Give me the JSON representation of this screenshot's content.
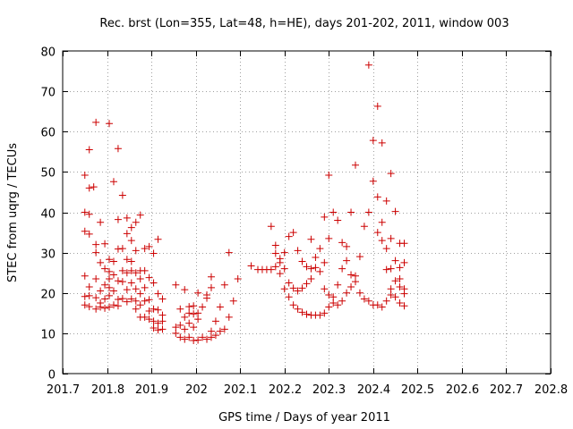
{
  "chart_data": {
    "type": "scatter",
    "title": "Rec. brst (Lon=355, Lat=48, h=HE), days 201-202, 2011, window 003",
    "xlabel": "GPS time / Days of year 2011",
    "ylabel": "STEC from uqrg / TECUs",
    "xlim": [
      201.7,
      202.8
    ],
    "ylim": [
      0,
      80
    ],
    "grid": true,
    "marker": "+",
    "marker_color": "#cc0000",
    "xticks": [
      201.7,
      201.8,
      201.9,
      202.0,
      202.1,
      202.2,
      202.3,
      202.4,
      202.5,
      202.6,
      202.7,
      202.8
    ],
    "xtick_labels": [
      "201.7",
      "201.8",
      "201.9",
      "202",
      "202.1",
      "202.2",
      "202.3",
      "202.4",
      "202.5",
      "202.6",
      "202.7",
      "202.8"
    ],
    "yticks": [
      0,
      10,
      20,
      30,
      40,
      50,
      60,
      70,
      80
    ],
    "ytick_labels": [
      "0",
      "10",
      "20",
      "30",
      "40",
      "50",
      "60",
      "70",
      "80"
    ],
    "series": [
      {
        "name": "STEC",
        "points": [
          [
            201.75,
            49.2
          ],
          [
            201.75,
            40.0
          ],
          [
            201.75,
            35.3
          ],
          [
            201.75,
            24.2
          ],
          [
            201.75,
            19.1
          ],
          [
            201.75,
            17.0
          ],
          [
            201.76,
            55.5
          ],
          [
            201.76,
            46.0
          ],
          [
            201.76,
            39.5
          ],
          [
            201.76,
            34.6
          ],
          [
            201.76,
            21.5
          ],
          [
            201.76,
            19.3
          ],
          [
            201.76,
            16.6
          ],
          [
            201.77,
            46.3
          ],
          [
            201.775,
            62.3
          ],
          [
            201.775,
            32.0
          ],
          [
            201.775,
            30.0
          ],
          [
            201.775,
            23.5
          ],
          [
            201.775,
            18.8
          ],
          [
            201.775,
            16.0
          ],
          [
            201.785,
            37.5
          ],
          [
            201.785,
            27.5
          ],
          [
            201.785,
            20.5
          ],
          [
            201.785,
            17.5
          ],
          [
            201.785,
            16.5
          ],
          [
            201.795,
            32.2
          ],
          [
            201.795,
            26.0
          ],
          [
            201.795,
            22.0
          ],
          [
            201.795,
            18.5
          ],
          [
            201.795,
            16.2
          ],
          [
            201.805,
            62.0
          ],
          [
            201.805,
            28.3
          ],
          [
            201.805,
            25.3
          ],
          [
            201.805,
            23.5
          ],
          [
            201.805,
            21.3
          ],
          [
            201.805,
            19.3
          ],
          [
            201.805,
            16.5
          ],
          [
            201.815,
            47.6
          ],
          [
            201.815,
            27.8
          ],
          [
            201.815,
            24.5
          ],
          [
            201.815,
            20.5
          ],
          [
            201.815,
            17.0
          ],
          [
            201.825,
            55.8
          ],
          [
            201.825,
            38.2
          ],
          [
            201.825,
            30.9
          ],
          [
            201.825,
            23.0
          ],
          [
            201.825,
            18.4
          ],
          [
            201.825,
            16.8
          ],
          [
            201.835,
            44.2
          ],
          [
            201.835,
            31.0
          ],
          [
            201.835,
            25.5
          ],
          [
            201.835,
            22.8
          ],
          [
            201.835,
            18.6
          ],
          [
            201.845,
            38.6
          ],
          [
            201.845,
            34.7
          ],
          [
            201.845,
            28.3
          ],
          [
            201.845,
            25.0
          ],
          [
            201.845,
            20.8
          ],
          [
            201.845,
            17.8
          ],
          [
            201.855,
            36.2
          ],
          [
            201.855,
            33.0
          ],
          [
            201.855,
            27.8
          ],
          [
            201.855,
            25.5
          ],
          [
            201.855,
            22.5
          ],
          [
            201.855,
            18.5
          ],
          [
            201.865,
            37.5
          ],
          [
            201.865,
            30.5
          ],
          [
            201.865,
            25.0
          ],
          [
            201.865,
            21.0
          ],
          [
            201.865,
            18.0
          ],
          [
            201.865,
            16.0
          ],
          [
            201.875,
            39.3
          ],
          [
            201.875,
            25.5
          ],
          [
            201.875,
            23.5
          ],
          [
            201.875,
            19.8
          ],
          [
            201.875,
            17.0
          ],
          [
            201.875,
            14.0
          ],
          [
            201.885,
            31.0
          ],
          [
            201.885,
            25.5
          ],
          [
            201.885,
            21.3
          ],
          [
            201.885,
            18.0
          ],
          [
            201.885,
            14.0
          ],
          [
            201.895,
            31.5
          ],
          [
            201.895,
            23.8
          ],
          [
            201.895,
            18.3
          ],
          [
            201.895,
            15.5
          ],
          [
            201.895,
            13.5
          ],
          [
            201.905,
            29.8
          ],
          [
            201.905,
            22.5
          ],
          [
            201.905,
            16.0
          ],
          [
            201.905,
            13.0
          ],
          [
            201.905,
            11.3
          ],
          [
            201.915,
            33.3
          ],
          [
            201.915,
            19.8
          ],
          [
            201.915,
            15.8
          ],
          [
            201.915,
            12.5
          ],
          [
            201.915,
            10.8
          ],
          [
            201.925,
            18.5
          ],
          [
            201.925,
            14.5
          ],
          [
            201.925,
            13.0
          ],
          [
            201.925,
            11.0
          ],
          [
            201.955,
            22.0
          ],
          [
            201.955,
            11.5
          ],
          [
            201.955,
            10.0
          ],
          [
            201.965,
            16.0
          ],
          [
            201.965,
            12.0
          ],
          [
            201.965,
            9.0
          ],
          [
            201.975,
            20.8
          ],
          [
            201.975,
            14.0
          ],
          [
            201.975,
            11.0
          ],
          [
            201.975,
            8.5
          ],
          [
            201.985,
            16.6
          ],
          [
            201.985,
            15.0
          ],
          [
            201.985,
            12.5
          ],
          [
            201.985,
            9.0
          ],
          [
            201.995,
            16.8
          ],
          [
            201.995,
            14.8
          ],
          [
            201.995,
            11.5
          ],
          [
            201.995,
            8.2
          ],
          [
            202.005,
            20.0
          ],
          [
            202.005,
            15.0
          ],
          [
            202.005,
            13.5
          ],
          [
            202.005,
            8.3
          ],
          [
            202.015,
            16.5
          ],
          [
            202.015,
            9.0
          ],
          [
            202.025,
            19.5
          ],
          [
            202.025,
            18.7
          ],
          [
            202.025,
            8.5
          ],
          [
            202.035,
            24.0
          ],
          [
            202.035,
            21.3
          ],
          [
            202.035,
            10.5
          ],
          [
            202.035,
            9.0
          ],
          [
            202.045,
            13.0
          ],
          [
            202.045,
            9.5
          ],
          [
            202.055,
            16.5
          ],
          [
            202.055,
            10.5
          ],
          [
            202.065,
            22.0
          ],
          [
            202.065,
            11.0
          ],
          [
            202.075,
            30.0
          ],
          [
            202.075,
            14.0
          ],
          [
            202.085,
            18.0
          ],
          [
            202.095,
            23.5
          ],
          [
            202.125,
            26.7
          ],
          [
            202.14,
            25.8
          ],
          [
            202.15,
            25.8
          ],
          [
            202.16,
            25.8
          ],
          [
            202.17,
            36.5
          ],
          [
            202.17,
            25.8
          ],
          [
            202.18,
            31.8
          ],
          [
            202.18,
            29.8
          ],
          [
            202.18,
            26.5
          ],
          [
            202.19,
            28.5
          ],
          [
            202.19,
            27.5
          ],
          [
            202.19,
            24.8
          ],
          [
            202.2,
            30.0
          ],
          [
            202.2,
            26.0
          ],
          [
            202.2,
            21.0
          ],
          [
            202.21,
            34.0
          ],
          [
            202.21,
            22.5
          ],
          [
            202.21,
            19.0
          ],
          [
            202.22,
            35.0
          ],
          [
            202.22,
            21.2
          ],
          [
            202.22,
            17.0
          ],
          [
            202.23,
            30.5
          ],
          [
            202.23,
            20.5
          ],
          [
            202.23,
            16.0
          ],
          [
            202.24,
            27.8
          ],
          [
            202.24,
            21.2
          ],
          [
            202.24,
            15.2
          ],
          [
            202.25,
            26.5
          ],
          [
            202.25,
            22.3
          ],
          [
            202.25,
            14.7
          ],
          [
            202.26,
            33.3
          ],
          [
            202.26,
            26.0
          ],
          [
            202.26,
            23.5
          ],
          [
            202.26,
            14.5
          ],
          [
            202.27,
            26.3
          ],
          [
            202.27,
            28.8
          ],
          [
            202.27,
            14.5
          ],
          [
            202.28,
            31.0
          ],
          [
            202.28,
            25.3
          ],
          [
            202.28,
            14.5
          ],
          [
            202.29,
            38.8
          ],
          [
            202.29,
            27.5
          ],
          [
            202.29,
            21.0
          ],
          [
            202.29,
            15.0
          ],
          [
            202.3,
            49.2
          ],
          [
            202.3,
            33.5
          ],
          [
            202.3,
            19.5
          ],
          [
            202.3,
            16.5
          ],
          [
            202.31,
            40.0
          ],
          [
            202.31,
            19.0
          ],
          [
            202.31,
            17.5
          ],
          [
            202.32,
            38.0
          ],
          [
            202.32,
            22.0
          ],
          [
            202.32,
            17.0
          ],
          [
            202.33,
            32.5
          ],
          [
            202.33,
            26.0
          ],
          [
            202.33,
            18.0
          ],
          [
            202.34,
            31.5
          ],
          [
            202.34,
            28.0
          ],
          [
            202.34,
            20.0
          ],
          [
            202.35,
            40.0
          ],
          [
            202.35,
            24.5
          ],
          [
            202.35,
            21.5
          ],
          [
            202.36,
            51.7
          ],
          [
            202.36,
            24.2
          ],
          [
            202.36,
            22.8
          ],
          [
            202.37,
            29.0
          ],
          [
            202.37,
            20.0
          ],
          [
            202.38,
            36.5
          ],
          [
            202.38,
            18.5
          ],
          [
            202.39,
            76.5
          ],
          [
            202.39,
            40.0
          ],
          [
            202.39,
            18.0
          ],
          [
            202.4,
            47.7
          ],
          [
            202.4,
            57.8
          ],
          [
            202.4,
            17.0
          ],
          [
            202.41,
            66.3
          ],
          [
            202.41,
            43.8
          ],
          [
            202.41,
            35.0
          ],
          [
            202.41,
            17.0
          ],
          [
            202.42,
            57.2
          ],
          [
            202.42,
            37.5
          ],
          [
            202.42,
            33.0
          ],
          [
            202.42,
            16.5
          ],
          [
            202.43,
            42.8
          ],
          [
            202.43,
            31.0
          ],
          [
            202.43,
            25.8
          ],
          [
            202.43,
            18.0
          ],
          [
            202.44,
            49.6
          ],
          [
            202.44,
            33.5
          ],
          [
            202.44,
            26.0
          ],
          [
            202.44,
            21.0
          ],
          [
            202.44,
            19.5
          ],
          [
            202.45,
            40.2
          ],
          [
            202.45,
            28.0
          ],
          [
            202.45,
            23.0
          ],
          [
            202.45,
            19.0
          ],
          [
            202.46,
            32.3
          ],
          [
            202.46,
            26.3
          ],
          [
            202.46,
            23.5
          ],
          [
            202.46,
            21.5
          ],
          [
            202.46,
            17.5
          ],
          [
            202.47,
            32.3
          ],
          [
            202.47,
            27.5
          ],
          [
            202.47,
            21.0
          ],
          [
            202.47,
            19.8
          ],
          [
            202.47,
            16.8
          ]
        ]
      }
    ]
  }
}
